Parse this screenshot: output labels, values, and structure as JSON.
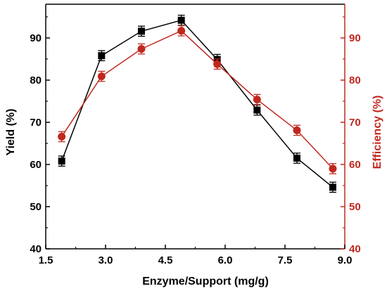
{
  "chart_data": {
    "type": "line",
    "title": "",
    "xlabel": "Enzyme/Support (mg/g)",
    "ylabel": "Yield (%)",
    "y2label": "Efficiency (%)",
    "xlim": [
      1.5,
      9.0
    ],
    "ylim": [
      40,
      98
    ],
    "y2lim": [
      40,
      98
    ],
    "xticks": [
      "1.5",
      "3.0",
      "4.5",
      "6.0",
      "7.5",
      "9.0"
    ],
    "yticks": [
      "40",
      "50",
      "60",
      "70",
      "80",
      "90"
    ],
    "y2ticks": [
      "40",
      "50",
      "60",
      "70",
      "80",
      "90"
    ],
    "grid": false,
    "series": [
      {
        "axis": "left",
        "marker": "square",
        "color": "#000000",
        "x": [
          1.9,
          2.9,
          3.9,
          4.9,
          5.8,
          6.8,
          7.8,
          8.7
        ],
        "y": [
          60.8,
          85.8,
          91.6,
          94.2,
          84.9,
          72.9,
          61.5,
          54.6
        ],
        "err": [
          1.2,
          1.2,
          1.2,
          1.2,
          1.2,
          1.2,
          1.2,
          1.2
        ]
      },
      {
        "axis": "right",
        "marker": "circle",
        "color": "#c0281e",
        "x": [
          1.9,
          2.9,
          3.9,
          4.9,
          5.8,
          6.8,
          7.8,
          8.7
        ],
        "y": [
          66.6,
          80.9,
          87.4,
          91.7,
          83.8,
          75.4,
          68.1,
          59.0
        ],
        "err": [
          1.2,
          1.2,
          1.2,
          1.2,
          1.2,
          1.2,
          1.2,
          1.2
        ]
      }
    ]
  }
}
